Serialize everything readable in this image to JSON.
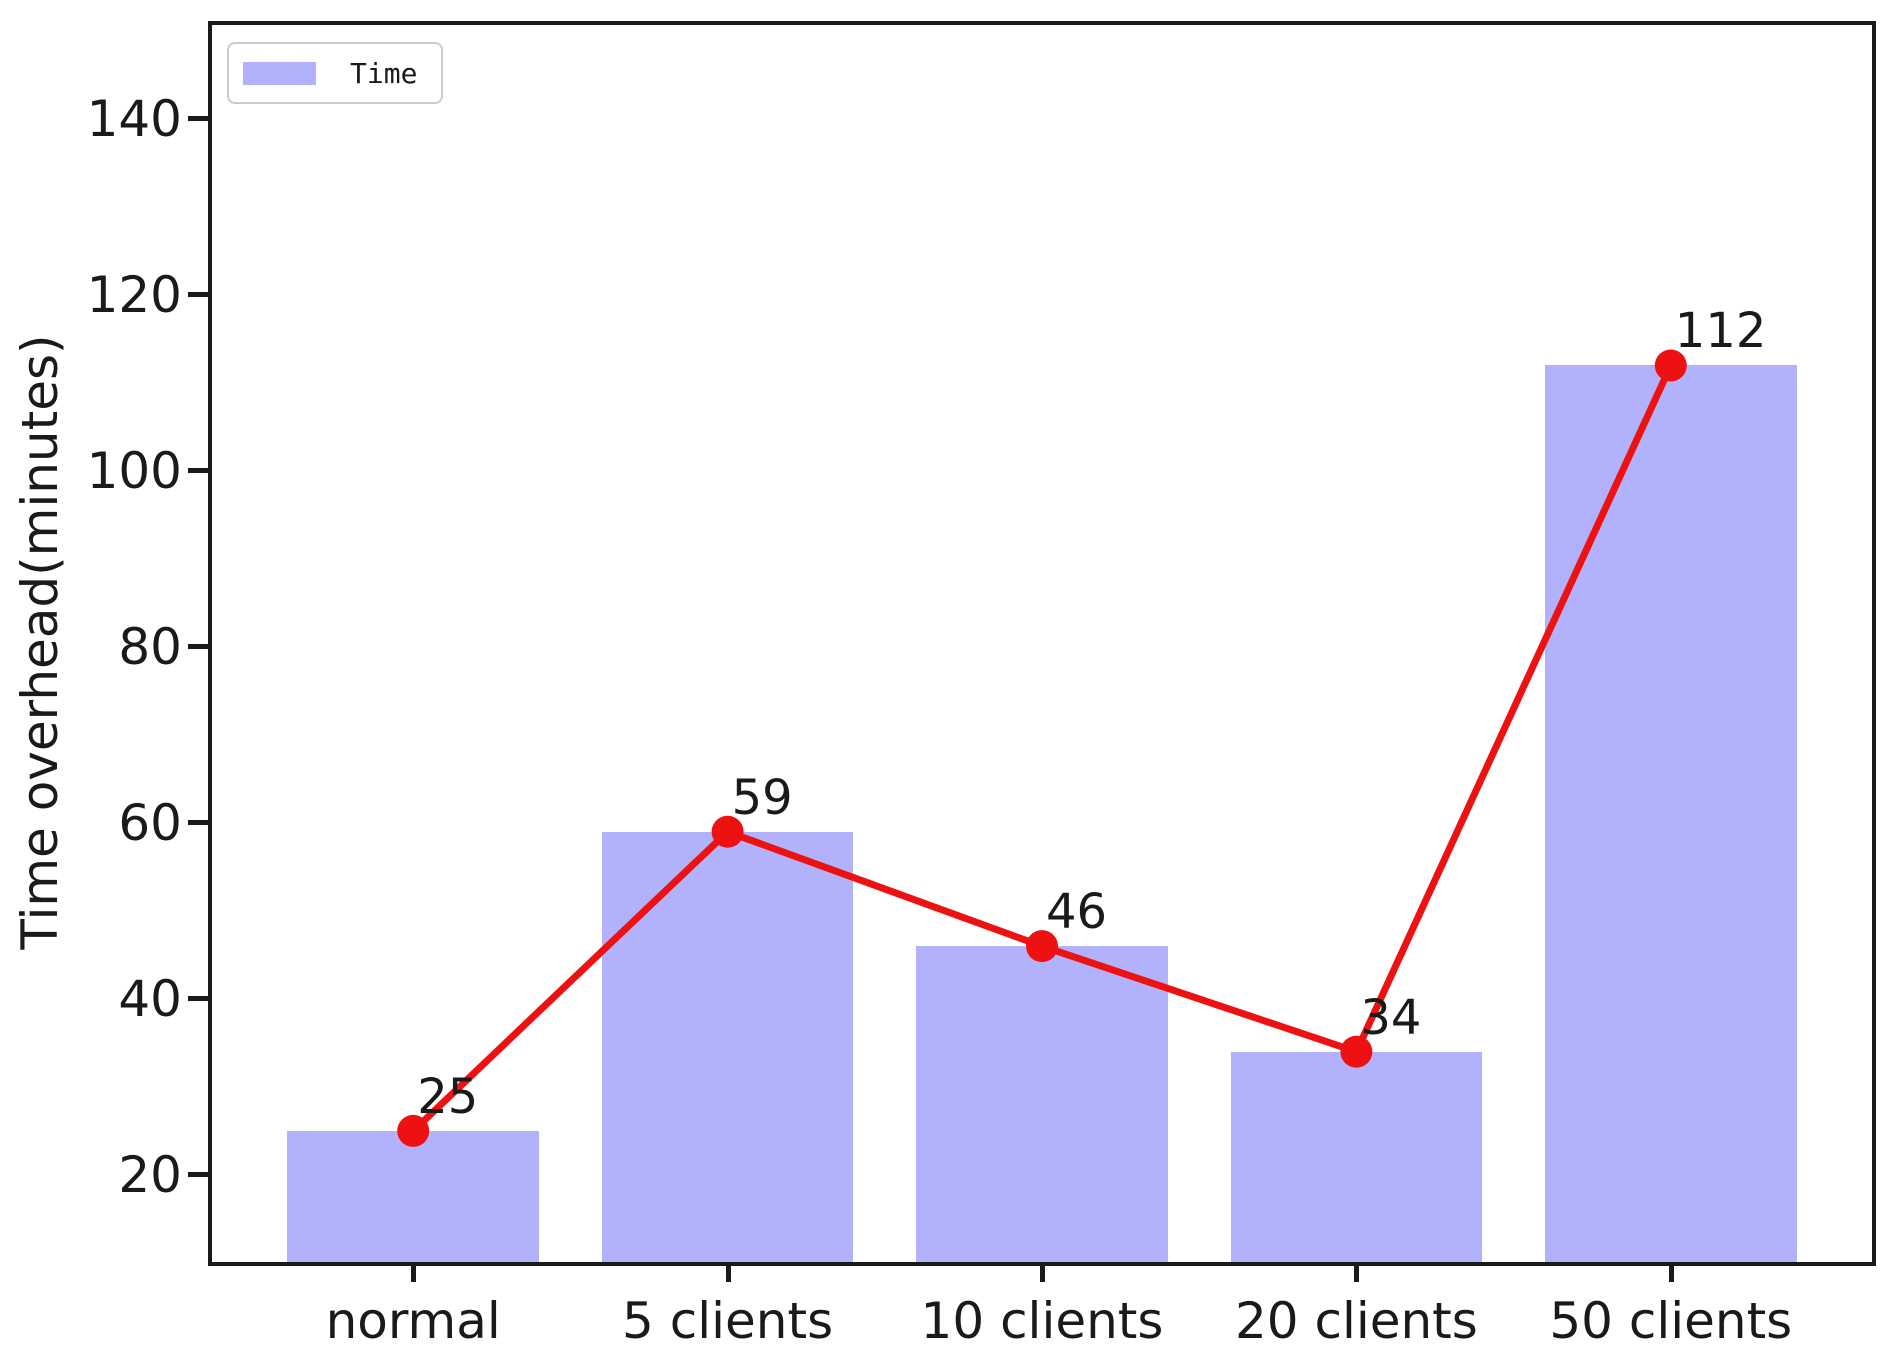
{
  "chart_data": {
    "type": "bar",
    "overlay": "line",
    "title": "",
    "xlabel": "",
    "ylabel": "Time overhead(minutes)",
    "categories": [
      "normal",
      "5 clients",
      "10 clients",
      "20 clients",
      "50 clients"
    ],
    "values": [
      25,
      59,
      46,
      34,
      112
    ],
    "yticks": [
      20,
      40,
      60,
      80,
      100,
      120,
      140
    ],
    "ylim": [
      10.1,
      150.7
    ],
    "grid": false,
    "legend": {
      "label": "Time",
      "position": "upper left"
    },
    "colors": {
      "bar": "#b2b2fc",
      "line": "#ee1111",
      "marker": "#ee1111",
      "axis": "#1a1a1a",
      "text": "#1a1a1a",
      "legend_border": "#cbcbcb"
    }
  }
}
